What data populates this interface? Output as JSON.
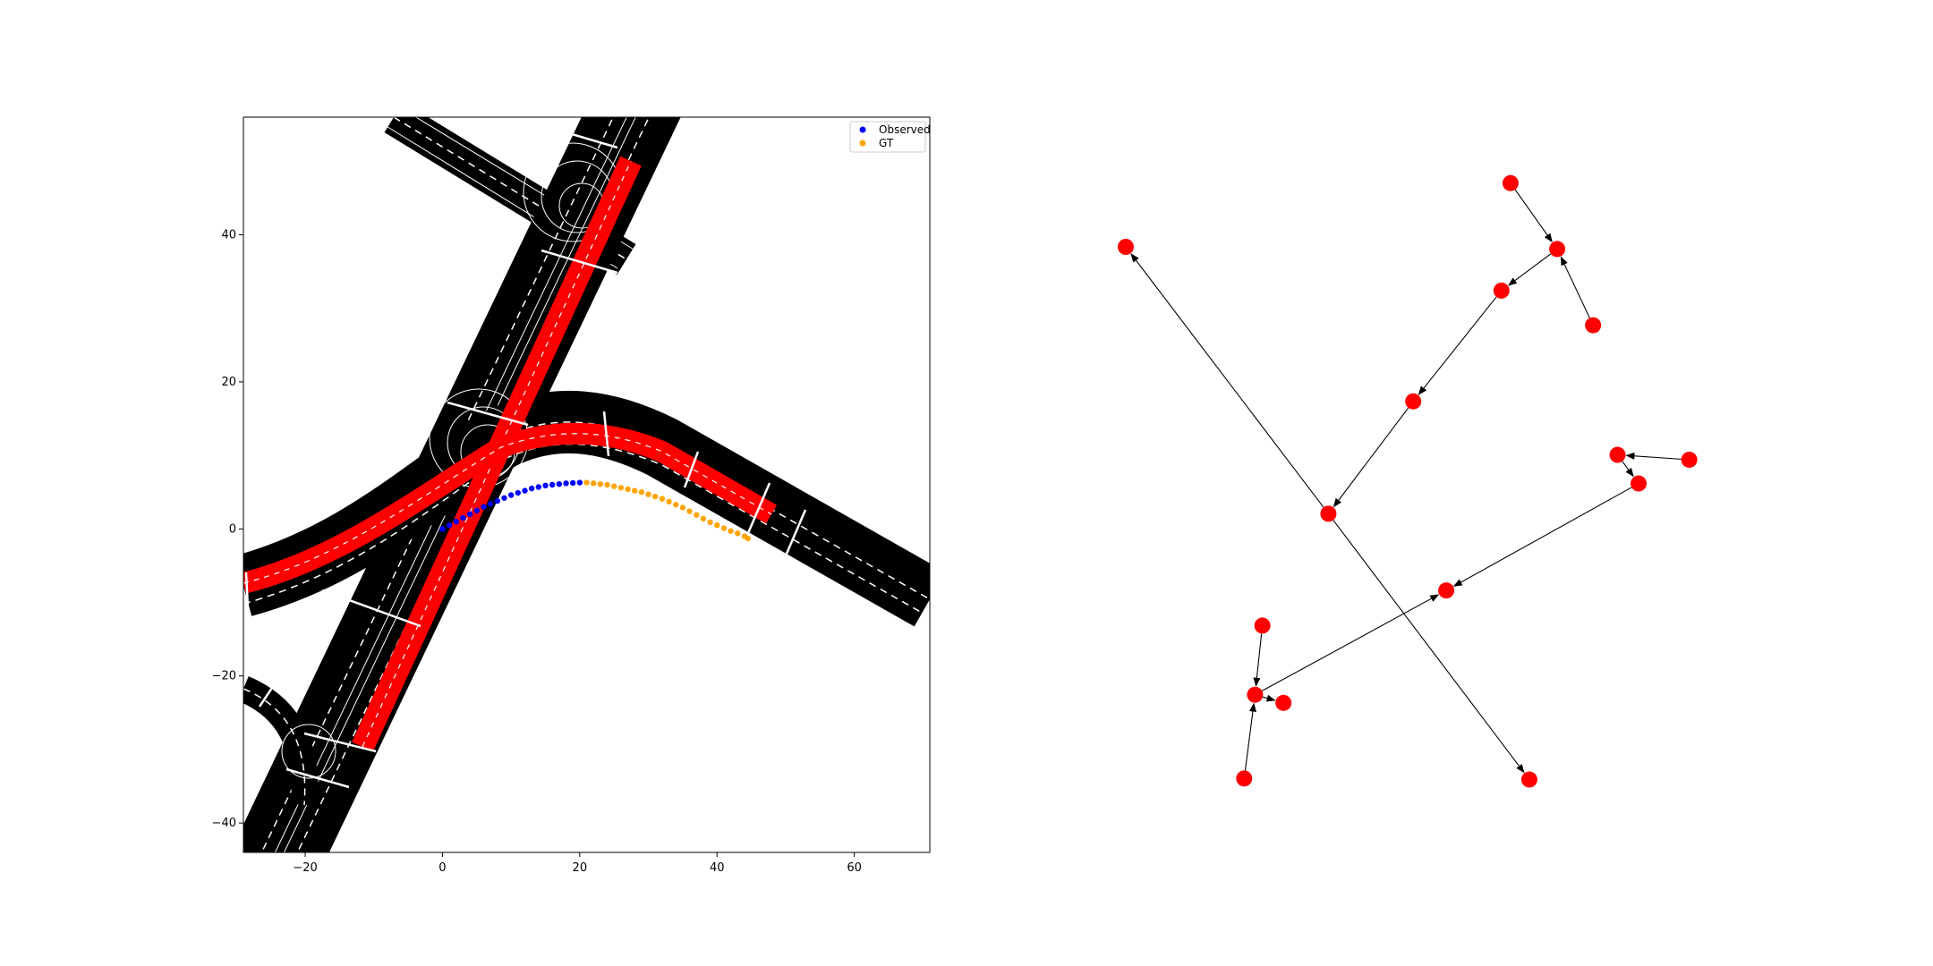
{
  "chart_data": [
    {
      "type": "scatter",
      "title": "",
      "xlabel": "",
      "ylabel": "",
      "xlim": [
        -29,
        71
      ],
      "ylim": [
        -44,
        56
      ],
      "x_ticks": [
        -20,
        0,
        20,
        40,
        60
      ],
      "y_ticks": [
        -40,
        -20,
        0,
        20,
        40
      ],
      "x_tick_labels": [
        "−20",
        "0",
        "20",
        "40",
        "60"
      ],
      "y_tick_labels": [
        "−40",
        "−20",
        "0",
        "20",
        "40"
      ],
      "legend": {
        "placement": "top-right",
        "entries": [
          "Observed",
          "GT"
        ]
      },
      "colors": {
        "observed": "#0000ff",
        "gt": "#ffa500",
        "lane_highlight": "#ff0000",
        "road": "#000000"
      },
      "series": [
        {
          "name": "Observed",
          "points": [
            [
              0,
              0
            ],
            [
              1,
              0.5
            ],
            [
              2,
              1
            ],
            [
              3,
              1.5
            ],
            [
              4,
              2
            ],
            [
              5,
              2.5
            ],
            [
              6,
              3
            ],
            [
              7,
              3.4
            ],
            [
              8,
              3.8
            ],
            [
              9,
              4.2
            ],
            [
              10,
              4.6
            ],
            [
              11,
              4.9
            ],
            [
              12,
              5.2
            ],
            [
              13,
              5.5
            ],
            [
              14,
              5.7
            ],
            [
              15,
              5.9
            ],
            [
              16,
              6.0
            ],
            [
              17,
              6.1
            ],
            [
              18,
              6.2
            ],
            [
              19,
              6.25
            ],
            [
              20,
              6.3
            ]
          ]
        },
        {
          "name": "GT",
          "points": [
            [
              21,
              6.3
            ],
            [
              22,
              6.2
            ],
            [
              23,
              6.1
            ],
            [
              24,
              6.0
            ],
            [
              25,
              5.8
            ],
            [
              26,
              5.6
            ],
            [
              27,
              5.4
            ],
            [
              28,
              5.2
            ],
            [
              29,
              5.0
            ],
            [
              30,
              4.7
            ],
            [
              31,
              4.4
            ],
            [
              32,
              4.1
            ],
            [
              33,
              3.7
            ],
            [
              34,
              3.3
            ],
            [
              35,
              2.9
            ],
            [
              36,
              2.4
            ],
            [
              37,
              1.9
            ],
            [
              38,
              1.4
            ],
            [
              39,
              0.9
            ],
            [
              40,
              0.5
            ],
            [
              41,
              0.1
            ],
            [
              42,
              -0.3
            ],
            [
              43,
              -0.6
            ],
            [
              44,
              -1.0
            ],
            [
              44.5,
              -1.3
            ]
          ]
        }
      ]
    },
    {
      "type": "graph",
      "node_color": "#ff0000",
      "edge_color": "#000000",
      "nodes": [
        {
          "id": "n1",
          "x": 0.0,
          "y": 1.0
        },
        {
          "id": "n2",
          "x": 0.676,
          "y": 1.118
        },
        {
          "id": "n3",
          "x": 0.758,
          "y": 0.996
        },
        {
          "id": "n4",
          "x": 0.821,
          "y": 0.855
        },
        {
          "id": "n5",
          "x": 0.66,
          "y": 0.919
        },
        {
          "id": "n6",
          "x": 0.505,
          "y": 0.714
        },
        {
          "id": "n7",
          "x": 0.356,
          "y": 0.506
        },
        {
          "id": "n8",
          "x": 0.864,
          "y": 0.615
        },
        {
          "id": "n9",
          "x": 0.99,
          "y": 0.606
        },
        {
          "id": "n10",
          "x": 0.901,
          "y": 0.562
        },
        {
          "id": "n11",
          "x": 0.563,
          "y": 0.364
        },
        {
          "id": "n12",
          "x": 0.24,
          "y": 0.299
        },
        {
          "id": "n13",
          "x": 0.227,
          "y": 0.171
        },
        {
          "id": "n14",
          "x": 0.277,
          "y": 0.156
        },
        {
          "id": "n15",
          "x": 0.208,
          "y": 0.016
        },
        {
          "id": "n16",
          "x": 0.709,
          "y": 0.014
        }
      ],
      "edges": [
        [
          "n7",
          "n1"
        ],
        [
          "n7",
          "n16"
        ],
        [
          "n6",
          "n7"
        ],
        [
          "n5",
          "n6"
        ],
        [
          "n3",
          "n5"
        ],
        [
          "n2",
          "n3"
        ],
        [
          "n4",
          "n3"
        ],
        [
          "n10",
          "n11"
        ],
        [
          "n8",
          "n10"
        ],
        [
          "n9",
          "n8"
        ],
        [
          "n13",
          "n11"
        ],
        [
          "n13",
          "n14"
        ],
        [
          "n12",
          "n13"
        ],
        [
          "n15",
          "n13"
        ]
      ]
    }
  ]
}
